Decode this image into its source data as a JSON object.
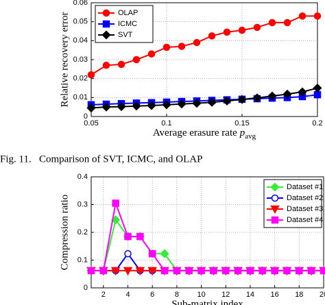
{
  "caption": "Fig. 11.   Comparison of SVT, ICMC, and OLAP",
  "chart_data": [
    {
      "type": "line",
      "xlabel": "Average erasure rate",
      "xlabel_var": "p",
      "xlabel_sub": "avg",
      "ylabel": "Relative recovery error",
      "x": [
        0.05,
        0.06,
        0.07,
        0.08,
        0.09,
        0.1,
        0.11,
        0.12,
        0.13,
        0.14,
        0.15,
        0.16,
        0.17,
        0.18,
        0.19,
        0.2
      ],
      "xlim": [
        0.05,
        0.2
      ],
      "xticks": [
        0.05,
        0.1,
        0.15,
        0.2
      ],
      "ylim": [
        0,
        0.06
      ],
      "yticks": [
        0,
        0.01,
        0.02,
        0.03,
        0.04,
        0.05,
        0.06
      ],
      "grid": true,
      "legend": "upper left",
      "series": [
        {
          "name": "OLAP",
          "color": "#ff0000",
          "marker": "circle",
          "filled": true,
          "values": [
            0.022,
            0.027,
            0.0275,
            0.03,
            0.033,
            0.0365,
            0.037,
            0.039,
            0.0425,
            0.0445,
            0.0455,
            0.047,
            0.0495,
            0.0495,
            0.053,
            0.053
          ]
        },
        {
          "name": "ICMC",
          "color": "#0000ff",
          "marker": "square",
          "filled": true,
          "values": [
            0.0062,
            0.0065,
            0.0068,
            0.0071,
            0.0073,
            0.0076,
            0.0079,
            0.0082,
            0.0085,
            0.0088,
            0.0091,
            0.0094,
            0.0097,
            0.01,
            0.0105,
            0.0115
          ]
        },
        {
          "name": "SVT",
          "color": "#000000",
          "marker": "diamond",
          "filled": true,
          "values": [
            0.0045,
            0.005,
            0.0052,
            0.0055,
            0.0058,
            0.0062,
            0.0066,
            0.007,
            0.0075,
            0.0082,
            0.009,
            0.0098,
            0.0108,
            0.0118,
            0.013,
            0.015
          ]
        }
      ]
    },
    {
      "type": "line",
      "xlabel": "Sub-matrix index",
      "ylabel": "Compression ratio",
      "x": [
        1,
        2,
        3,
        4,
        5,
        6,
        7,
        8,
        9,
        10,
        11,
        12,
        13,
        14,
        15,
        16,
        17,
        18,
        19,
        20
      ],
      "xlim": [
        1,
        20
      ],
      "xticks": [
        2,
        4,
        6,
        8,
        10,
        12,
        14,
        16,
        18,
        20
      ],
      "ylim": [
        0,
        0.4
      ],
      "yticks": [
        0,
        0.1,
        0.2,
        0.3,
        0.4
      ],
      "grid": true,
      "legend": "upper right",
      "series": [
        {
          "name": "Dataset #1",
          "color": "#33ee33",
          "marker": "diamond",
          "filled": true,
          "values": [
            0.062,
            0.062,
            0.245,
            0.185,
            0.185,
            0.123,
            0.123,
            0.062,
            0.062,
            0.062,
            0.062,
            0.062,
            0.062,
            0.062,
            0.062,
            0.062,
            0.062,
            0.062,
            0.062,
            0.062
          ]
        },
        {
          "name": "Dataset #2",
          "color": "#0000ff",
          "marker": "circle",
          "filled": false,
          "values": [
            0.062,
            0.062,
            0.062,
            0.123,
            0.062,
            0.062,
            0.062,
            0.062,
            0.062,
            0.062,
            0.062,
            0.062,
            0.062,
            0.062,
            0.062,
            0.062,
            0.062,
            0.062,
            0.062,
            0.062
          ]
        },
        {
          "name": "Dataset #3",
          "color": "#ff0000",
          "marker": "triangle-down",
          "filled": true,
          "values": [
            0.062,
            0.062,
            0.062,
            0.062,
            0.062,
            0.062,
            0.062,
            0.062,
            0.062,
            0.062,
            0.062,
            0.062,
            0.062,
            0.062,
            0.062,
            0.062,
            0.062,
            0.062,
            0.062,
            0.062
          ]
        },
        {
          "name": "Dataset #4",
          "color": "#ff00ff",
          "marker": "square",
          "filled": true,
          "values": [
            0.062,
            0.062,
            0.305,
            0.185,
            0.185,
            0.123,
            0.062,
            0.062,
            0.062,
            0.062,
            0.062,
            0.062,
            0.062,
            0.062,
            0.062,
            0.062,
            0.062,
            0.062,
            0.062,
            0.062
          ]
        }
      ]
    }
  ]
}
